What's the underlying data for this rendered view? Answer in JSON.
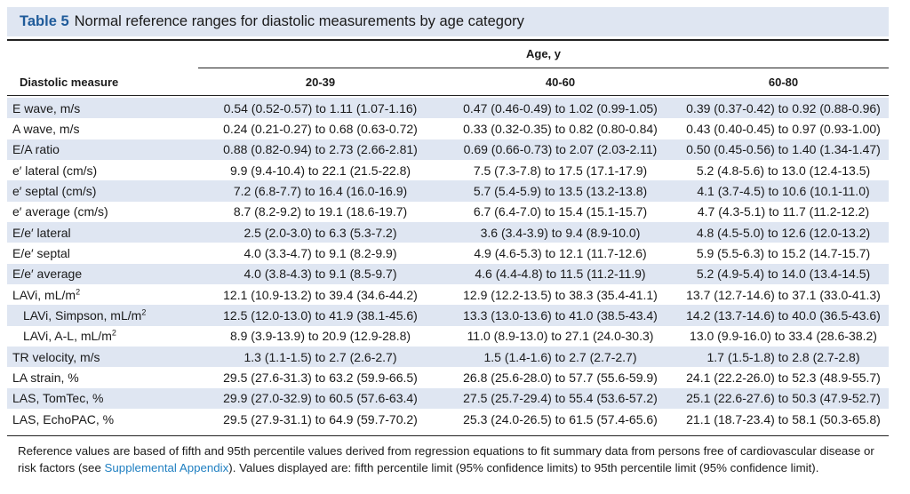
{
  "table": {
    "label": "Table 5",
    "title": "Normal reference ranges for diastolic measurements by age category",
    "header": {
      "row_label": "Diastolic measure",
      "group": "Age, y",
      "columns": [
        "20-39",
        "40-60",
        "60-80"
      ]
    },
    "rows": [
      {
        "label": "E wave, m/s",
        "unit_sup": "",
        "indent": false,
        "values": [
          "0.54 (0.52-0.57) to 1.11 (1.07-1.16)",
          "0.47 (0.46-0.49) to 1.02 (0.99-1.05)",
          "0.39 (0.37-0.42) to 0.92 (0.88-0.96)"
        ]
      },
      {
        "label": "A wave, m/s",
        "unit_sup": "",
        "indent": false,
        "values": [
          "0.24 (0.21-0.27) to 0.68 (0.63-0.72)",
          "0.33 (0.32-0.35) to 0.82 (0.80-0.84)",
          "0.43 (0.40-0.45) to 0.97 (0.93-1.00)"
        ]
      },
      {
        "label": "E/A ratio",
        "unit_sup": "",
        "indent": false,
        "values": [
          "0.88 (0.82-0.94) to 2.73 (2.66-2.81)",
          "0.69 (0.66-0.73) to 2.07 (2.03-2.11)",
          "0.50 (0.45-0.56) to 1.40 (1.34-1.47)"
        ]
      },
      {
        "label": "e′ lateral (cm/s)",
        "unit_sup": "",
        "indent": false,
        "values": [
          "9.9 (9.4-10.4) to 22.1 (21.5-22.8)",
          "7.5 (7.3-7.8) to 17.5 (17.1-17.9)",
          "5.2 (4.8-5.6) to 13.0 (12.4-13.5)"
        ]
      },
      {
        "label": "e′ septal (cm/s)",
        "unit_sup": "",
        "indent": false,
        "values": [
          "7.2 (6.8-7.7) to 16.4 (16.0-16.9)",
          "5.7 (5.4-5.9) to 13.5 (13.2-13.8)",
          "4.1 (3.7-4.5) to 10.6 (10.1-11.0)"
        ]
      },
      {
        "label": "e′ average (cm/s)",
        "unit_sup": "",
        "indent": false,
        "values": [
          "8.7 (8.2-9.2) to 19.1 (18.6-19.7)",
          "6.7 (6.4-7.0) to 15.4 (15.1-15.7)",
          "4.7 (4.3-5.1) to 11.7 (11.2-12.2)"
        ]
      },
      {
        "label": "E/e′ lateral",
        "unit_sup": "",
        "indent": false,
        "values": [
          "2.5 (2.0-3.0) to 6.3 (5.3-7.2)",
          "3.6 (3.4-3.9) to 9.4 (8.9-10.0)",
          "4.8 (4.5-5.0) to 12.6 (12.0-13.2)"
        ]
      },
      {
        "label": "E/e′ septal",
        "unit_sup": "",
        "indent": false,
        "values": [
          "4.0 (3.3-4.7) to 9.1 (8.2-9.9)",
          "4.9 (4.6-5.3) to 12.1 (11.7-12.6)",
          "5.9 (5.5-6.3) to 15.2 (14.7-15.7)"
        ]
      },
      {
        "label": "E/e′ average",
        "unit_sup": "",
        "indent": false,
        "values": [
          "4.0 (3.8-4.3) to 9.1 (8.5-9.7)",
          "4.6 (4.4-4.8) to 11.5 (11.2-11.9)",
          "5.2 (4.9-5.4) to 14.0 (13.4-14.5)"
        ]
      },
      {
        "label": "LAVi, mL/m",
        "unit_sup": "2",
        "indent": false,
        "values": [
          "12.1 (10.9-13.2) to 39.4 (34.6-44.2)",
          "12.9 (12.2-13.5) to 38.3 (35.4-41.1)",
          "13.7 (12.7-14.6) to 37.1 (33.0-41.3)"
        ]
      },
      {
        "label": "LAVi, Simpson, mL/m",
        "unit_sup": "2",
        "indent": true,
        "values": [
          "12.5 (12.0-13.0) to 41.9 (38.1-45.6)",
          "13.3 (13.0-13.6) to 41.0 (38.5-43.4)",
          "14.2 (13.7-14.6) to 40.0 (36.5-43.6)"
        ]
      },
      {
        "label": "LAVi, A-L, mL/m",
        "unit_sup": "2",
        "indent": true,
        "values": [
          "8.9 (3.9-13.9) to 20.9 (12.9-28.8)",
          "11.0 (8.9-13.0) to 27.1 (24.0-30.3)",
          "13.0 (9.9-16.0) to 33.4 (28.6-38.2)"
        ]
      },
      {
        "label": "TR velocity, m/s",
        "unit_sup": "",
        "indent": false,
        "values": [
          "1.3 (1.1-1.5) to 2.7 (2.6-2.7)",
          "1.5 (1.4-1.6) to 2.7 (2.7-2.7)",
          "1.7 (1.5-1.8) to 2.8 (2.7-2.8)"
        ]
      },
      {
        "label": "LA strain, %",
        "unit_sup": "",
        "indent": false,
        "values": [
          "29.5 (27.6-31.3) to 63.2 (59.9-66.5)",
          "26.8 (25.6-28.0) to 57.7 (55.6-59.9)",
          "24.1 (22.2-26.0) to 52.3 (48.9-55.7)"
        ]
      },
      {
        "label": "LAS, TomTec, %",
        "unit_sup": "",
        "indent": false,
        "values": [
          "29.9 (27.0-32.9) to 60.5 (57.6-63.4)",
          "27.5 (25.7-29.4) to 55.4 (53.6-57.2)",
          "25.1 (22.6-27.6) to 50.3 (47.9-52.7)"
        ]
      },
      {
        "label": "LAS, EchoPAC, %",
        "unit_sup": "",
        "indent": false,
        "values": [
          "29.5 (27.9-31.1) to 64.9 (59.7-70.2)",
          "25.3 (24.0-26.5) to 61.5 (57.4-65.6)",
          "21.1 (18.7-23.4) to 58.1 (50.3-65.8)"
        ]
      }
    ],
    "footnote": {
      "before": "Reference values are based of fifth and 95th percentile values derived from regression equations to fit summary data from persons free of cardiovascular disease or risk factors (see ",
      "link": "Supplemental Appendix",
      "after": "). Values displayed are: fifth percentile limit (95% confidence limits) to 95th percentile limit (95% confidence limit)."
    },
    "colors": {
      "title_bg": "#dfe6f2",
      "row_shade": "#dfe6f2",
      "label_blue": "#1f5b9a",
      "link_blue": "#1f7fc1"
    }
  }
}
